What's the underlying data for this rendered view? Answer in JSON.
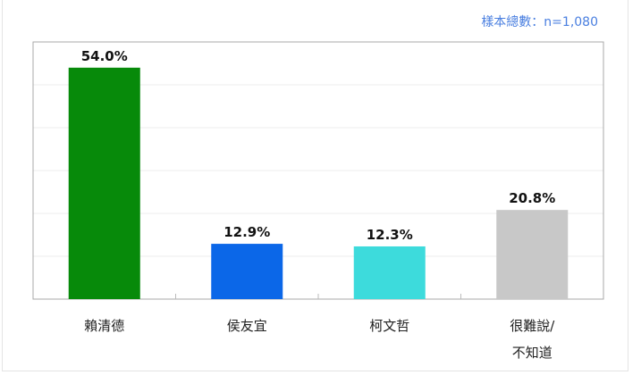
{
  "sample_note": "樣本總數：n=1,080",
  "chart_data": {
    "type": "bar",
    "categories": [
      "賴清德",
      "侯友宜",
      "柯文哲",
      "很難說/\n不知道"
    ],
    "category_lines": [
      [
        "賴清德"
      ],
      [
        "侯友宜"
      ],
      [
        "柯文哲"
      ],
      [
        "很難說/",
        "不知道"
      ]
    ],
    "values": [
      54.0,
      12.9,
      12.3,
      20.8
    ],
    "data_labels": [
      "54.0%",
      "12.9%",
      "12.3%",
      "20.8%"
    ],
    "colors": [
      "#078a0a",
      "#0b67e8",
      "#3ddbdc",
      "#c8c8c8"
    ],
    "ylim": [
      0,
      60
    ],
    "grid": true,
    "title": "",
    "xlabel": "",
    "ylabel": ""
  }
}
